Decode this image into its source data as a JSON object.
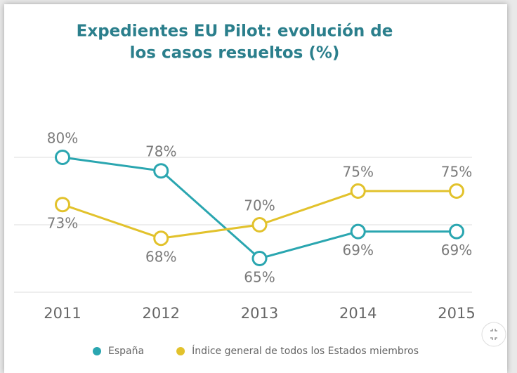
{
  "chart_data": {
    "type": "line",
    "title": [
      "Expedientes EU Pilot: evolución de",
      "los casos resueltos (%)"
    ],
    "x": [
      "2011",
      "2012",
      "2013",
      "2014",
      "2015"
    ],
    "series": [
      {
        "name": "España",
        "color": "#2aa6b0",
        "values": [
          80,
          78,
          65,
          69,
          69
        ],
        "value_labels": [
          "80%",
          "78%",
          "65%",
          "69%",
          "69%"
        ]
      },
      {
        "name": "Índice general de todos los Estados miembros",
        "color": "#e2c22c",
        "values": [
          73,
          68,
          70,
          75,
          75
        ],
        "value_labels": [
          "73%",
          "68%",
          "70%",
          "75%",
          "75%"
        ]
      }
    ],
    "ylim": [
      60,
      80
    ],
    "yticks": [
      60,
      70,
      80
    ],
    "grid": true
  }
}
